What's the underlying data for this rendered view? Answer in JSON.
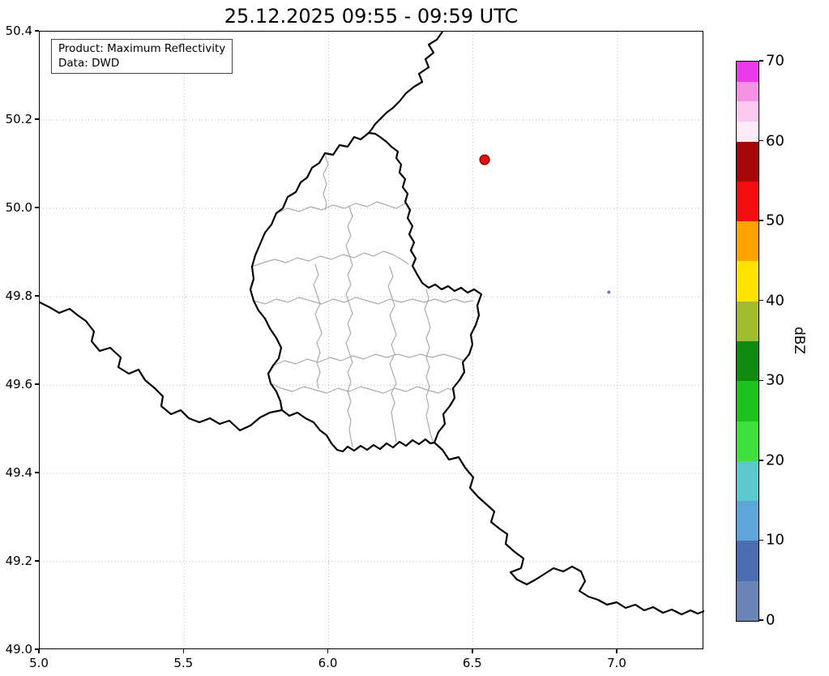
{
  "title": "25.12.2025 09:55 - 09:59 UTC",
  "info_box": {
    "line1": "Product: Maximum Reflectivity",
    "line2": "Data: DWD"
  },
  "axes": {
    "x": {
      "range": [
        5.0,
        7.3
      ],
      "ticks": [
        {
          "value": 5.0,
          "label": "5.0"
        },
        {
          "value": 5.5,
          "label": "5.5"
        },
        {
          "value": 6.0,
          "label": "6.0"
        },
        {
          "value": 6.5,
          "label": "6.5"
        },
        {
          "value": 7.0,
          "label": "7.0"
        }
      ]
    },
    "y": {
      "range": [
        49.0,
        50.4
      ],
      "ticks": [
        {
          "value": 49.0,
          "label": "49.0"
        },
        {
          "value": 49.2,
          "label": "49.2"
        },
        {
          "value": 49.4,
          "label": "49.4"
        },
        {
          "value": 49.6,
          "label": "49.6"
        },
        {
          "value": 49.8,
          "label": "49.8"
        },
        {
          "value": 50.0,
          "label": "50.0"
        },
        {
          "value": 50.2,
          "label": "50.2"
        },
        {
          "value": 50.4,
          "label": "50.4"
        }
      ]
    }
  },
  "colorbar": {
    "label": "dBZ",
    "min": 0,
    "max": 70,
    "ticks": [
      {
        "value": 0,
        "label": "0"
      },
      {
        "value": 10,
        "label": "10"
      },
      {
        "value": 20,
        "label": "20"
      },
      {
        "value": 30,
        "label": "30"
      },
      {
        "value": 40,
        "label": "40"
      },
      {
        "value": 50,
        "label": "50"
      },
      {
        "value": 60,
        "label": "60"
      },
      {
        "value": 70,
        "label": "70"
      }
    ],
    "segments": [
      {
        "from": 0,
        "to": 5,
        "color": "#6b84b6"
      },
      {
        "from": 5,
        "to": 10,
        "color": "#4c6cb4"
      },
      {
        "from": 10,
        "to": 15,
        "color": "#5ea5d9"
      },
      {
        "from": 15,
        "to": 20,
        "color": "#5cc9cf"
      },
      {
        "from": 20,
        "to": 25,
        "color": "#3ee03e"
      },
      {
        "from": 25,
        "to": 30,
        "color": "#1ec41e"
      },
      {
        "from": 30,
        "to": 35,
        "color": "#108b10"
      },
      {
        "from": 35,
        "to": 40,
        "color": "#a2ba2d"
      },
      {
        "from": 40,
        "to": 45,
        "color": "#ffe200"
      },
      {
        "from": 45,
        "to": 50,
        "color": "#ffa300"
      },
      {
        "from": 50,
        "to": 55,
        "color": "#f20e0e"
      },
      {
        "from": 55,
        "to": 60,
        "color": "#a50808"
      },
      {
        "from": 60,
        "to": 62.5,
        "color": "#fdeaf9"
      },
      {
        "from": 62.5,
        "to": 65,
        "color": "#fbc9f0"
      },
      {
        "from": 65,
        "to": 67.5,
        "color": "#f692e6"
      },
      {
        "from": 67.5,
        "to": 70,
        "color": "#ea3aea"
      }
    ]
  },
  "chart_data": {
    "type": "map",
    "radar_echoes": [
      {
        "lon": 6.54,
        "lat": 50.11,
        "approx_dbz": 50,
        "fill": "#e80b0b",
        "edge": "#700000",
        "radius_px": 6
      },
      {
        "lon": 6.97,
        "lat": 49.81,
        "approx_dbz": 5,
        "fill": "#5a7fc4",
        "edge": "none",
        "radius_px": 2
      }
    ]
  },
  "map": {
    "national_borders": [
      "M406,125 L396,133 388,130 380,142 370,140 362,152 352,150 345,162 336,168 330,180 322,186 316,198 306,204 300,218 292,224 286,238 278,248 272,262 266,276 262,290 264,305 260,318 264,332 270,344 278,354 284,366 292,378 298,390 295,403 288,412 282,422 285,434 292,444 297,456 299,467 308,474 318,470 328,477 338,482 346,492 354,498 360,508 367,516 374,518 380,512 388,517 396,511 404,516 412,510 420,515 428,508 436,513 444,506 452,511 460,504 468,509 476,503 482,508 487,507 492,494 500,484 498,472 506,462 512,452 510,440 518,430 524,420 522,408 530,398 534,386 532,374 538,362 542,350 540,338 545,324 536,318 528,322 520,316 512,320 504,314 496,318 488,312 480,316 472,310 466,300 460,289 464,280 458,270 462,260 456,250 460,240 454,230 457,220 451,210 454,200 448,192 451,182 444,174 446,164 440,156 442,148 434,142 428,136 420,130 414,126 Z",
      "M497,0 L490,10 480,16 486,26 476,34 480,44 468,52 472,62 462,68 452,76 444,86 436,94 428,100 420,108 414,114 410,120 406,125",
      "M0,334 L12,340 24,347 37,342 47,350 57,357 67,370 64,382 74,394 87,390 100,402 97,414 110,422 122,417 130,430 142,440 152,450 150,462 162,472 174,467 184,477 197,482 210,477 222,484 234,480 247,492 260,486 272,476 284,470 299,467",
      "M487,507 L497,516 505,528 517,525 525,538 535,550 531,563 541,574 551,583 561,592 557,605 567,613 577,620 575,632 585,641 597,650 594,662 581,667 589,676 601,682 612,676 623,669 634,662 646,666 657,660 668,666 673,678 666,690 677,697 689,701 700,707 712,704 723,711 735,707 746,714 757,710 769,717 780,713 792,719 803,714 812,718 820,715"
    ],
    "canton_borders": [
      "M292,224 L306,218 320,222 334,216 348,220 362,214 376,218 390,212 404,216 416,210 428,214 440,218 451,212",
      "M262,290 L276,285 290,281 304,285 318,279 332,283 346,277 360,281 374,275 388,279 400,273 412,277 424,271 436,275 448,282 455,287",
      "M264,332 L278,336 292,330 306,334 320,328 334,332 348,336 362,330 376,334 390,328 404,332 418,336 432,330 446,334 460,330 474,334 488,330 500,334 512,330 524,334 534,332",
      "M288,412 L302,406 316,410 330,404 344,408 358,402 372,406 386,400 400,404 414,398 428,402 442,398 456,402 470,398 484,402 498,398 512,402 524,406",
      "M285,434 L298,440 312,444 326,438 340,442 354,446 368,440 382,444 396,438 410,442 424,446 438,440 452,444 466,438 478,442 492,446 504,440 512,444",
      "M382,216 L386,228 380,240 384,252 378,264 382,276 386,288 380,300 384,312 378,324 382,336 386,348 380,360 384,372 378,384 382,396 386,408 380,420 384,432 380,444 384,456 380,468 384,480 382,492 384,502 386,512",
      "M340,287 L344,300 338,312 342,324 346,336 340,348 344,360 348,372 342,384 346,396 342,408 346,420 342,432 344,440",
      "M432,290 L436,302 430,314 434,326 438,338 432,350 436,362 440,374 434,386 438,398 432,410 436,422 440,434 434,446 438,458 434,470 436,482 438,494 440,506",
      "M477,318 L480,330 475,342 479,354 482,366 477,378 481,390 477,402 481,414 477,426 481,438 477,450 480,462 477,474 480,486 482,496 485,505",
      "M352,152 L356,164 350,176 354,188 350,200 354,212 352,220"
    ]
  }
}
